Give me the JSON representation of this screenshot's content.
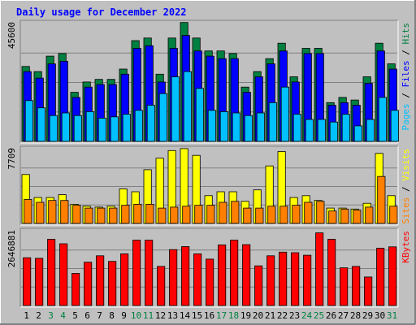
{
  "chart_data": {
    "type": "bar",
    "title": "Daily usage for December 2022",
    "days": [
      "1",
      "2",
      "3",
      "4",
      "5",
      "6",
      "7",
      "8",
      "9",
      "10",
      "11",
      "12",
      "13",
      "14",
      "15",
      "16",
      "17",
      "18",
      "19",
      "20",
      "21",
      "22",
      "23",
      "24",
      "25",
      "26",
      "27",
      "28",
      "29",
      "30",
      "31"
    ],
    "weekend_days": [
      "3",
      "4",
      "10",
      "11",
      "17",
      "18",
      "24",
      "25",
      "31"
    ],
    "panels": [
      {
        "id": "hits",
        "ymax_label": "45600",
        "ymax": 45600,
        "series": [
          {
            "name": "Hits",
            "color": "#008040",
            "values": [
              29000,
              27000,
              33000,
              34000,
              19000,
              23000,
              24000,
              24000,
              28000,
              39000,
              40000,
              26000,
              40000,
              46000,
              40000,
              35000,
              35000,
              34000,
              21000,
              27000,
              32000,
              38000,
              25000,
              36000,
              36000,
              15000,
              17000,
              16000,
              25000,
              38000,
              30000
            ]
          },
          {
            "name": "Files",
            "color": "#0000ff",
            "values": [
              27000,
              24500,
              30000,
              31000,
              17000,
              21000,
              22000,
              22000,
              26000,
              36000,
              37000,
              23000,
              36000,
              41000,
              35000,
              33000,
              32000,
              32000,
              19000,
              25000,
              30000,
              35000,
              23000,
              34000,
              34000,
              14000,
              15000,
              14000,
              22500,
              35000,
              28000
            ]
          },
          {
            "name": "Pages",
            "color": "#00c0ff",
            "values": [
              15800,
              13000,
              10000,
              11000,
              10000,
              11500,
              9000,
              9500,
              10500,
              12000,
              14000,
              18500,
              25000,
              27000,
              20500,
              12000,
              11500,
              11000,
              10000,
              11000,
              15000,
              21000,
              10500,
              8500,
              8500,
              7500,
              10500,
              6000,
              8500,
              17000,
              12000
            ]
          }
        ]
      },
      {
        "id": "visits",
        "ymax_label": "7709",
        "ymax": 7709,
        "series": [
          {
            "name": "Visits",
            "color": "#ffff00",
            "values": [
              5100,
              2700,
              2700,
              3000,
              2000,
              1800,
              1700,
              1800,
              3600,
              3300,
              5600,
              6800,
              7600,
              7800,
              7100,
              2900,
              3300,
              3300,
              2300,
              3500,
              6000,
              7500,
              2700,
              2900,
              2400,
              1600,
              1600,
              1500,
              2100,
              7300,
              2900
            ]
          },
          {
            "name": "Sites",
            "color": "#ff8000",
            "values": [
              2500,
              2200,
              2400,
              2400,
              1900,
              1600,
              1600,
              1600,
              1900,
              2000,
              2000,
              1600,
              1700,
              1800,
              1900,
              1900,
              2200,
              2300,
              1600,
              1600,
              1800,
              1800,
              1900,
              2200,
              2300,
              1300,
              1500,
              1400,
              1700,
              4900,
              1800
            ]
          }
        ]
      },
      {
        "id": "kbytes",
        "ymax_label": "2646881",
        "ymax": 2646881,
        "series": [
          {
            "name": "KBytes",
            "color": "#ff0000",
            "values": [
              1710000,
              1690000,
              2370000,
              2210000,
              1150000,
              1550000,
              1780000,
              1580000,
              1850000,
              2340000,
              2340000,
              1400000,
              2000000,
              2110000,
              1850000,
              1660000,
              2170000,
              2340000,
              2180000,
              1420000,
              1780000,
              1910000,
              1890000,
              1800000,
              2600000,
              2370000,
              1350000,
              1400000,
              1020000,
              2050000,
              2100000
            ]
          }
        ]
      }
    ],
    "right_labels": [
      {
        "parts": [
          {
            "text": "Pages",
            "color": "#00c0ff"
          },
          {
            "text": " / ",
            "color": "#000000"
          },
          {
            "text": "Files",
            "color": "#0000ff"
          },
          {
            "text": " / ",
            "color": "#000000"
          },
          {
            "text": "Hits",
            "color": "#008040"
          }
        ]
      },
      {
        "parts": [
          {
            "text": "Sites",
            "color": "#ff8000"
          },
          {
            "text": " / ",
            "color": "#000000"
          },
          {
            "text": "Visits",
            "color": "#ffff00"
          }
        ]
      },
      {
        "parts": [
          {
            "text": "KBytes",
            "color": "#ff0000"
          }
        ]
      }
    ],
    "colors": {
      "background": "#c0c0c0",
      "title": "#0000ff",
      "weekday_label": "#000000",
      "weekend_label": "#008040"
    }
  }
}
